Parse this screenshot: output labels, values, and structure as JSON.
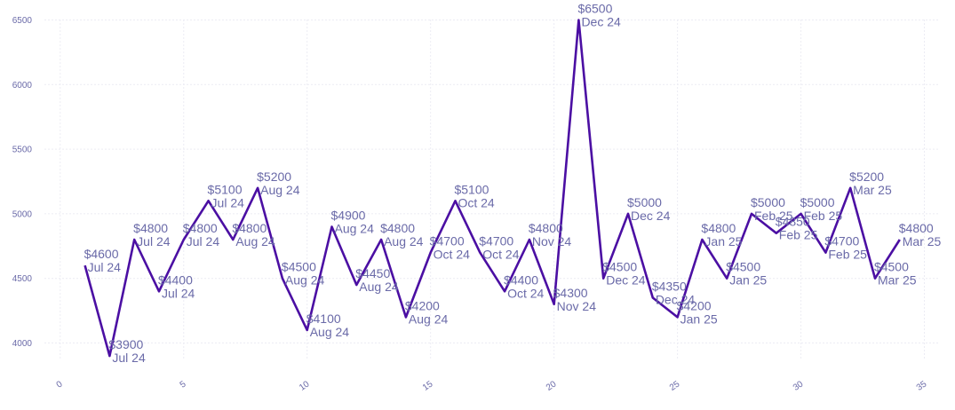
{
  "chart_data": {
    "type": "line",
    "title": "",
    "xlabel": "",
    "ylabel": "",
    "xlim": [
      -1,
      35.7
    ],
    "ylim": [
      3770,
      6620
    ],
    "x_ticks": [
      0,
      5,
      10,
      15,
      20,
      25,
      30,
      35
    ],
    "y_ticks": [
      4000,
      4500,
      5000,
      5500,
      6000,
      6500
    ],
    "grid": true,
    "line_color": "#4b0fa3",
    "text_color": "#6a6aa8",
    "series": [
      {
        "x": [
          1,
          2,
          3,
          4,
          5,
          6,
          7,
          8,
          9,
          10,
          11,
          12,
          13,
          14,
          15,
          16,
          17,
          18,
          19,
          20,
          21,
          22,
          23,
          24,
          25,
          26,
          27,
          28,
          29,
          30,
          31,
          32,
          33,
          34
        ],
        "values": [
          4600,
          3900,
          4800,
          4400,
          4800,
          5100,
          4800,
          5200,
          4500,
          4100,
          4900,
          4450,
          4800,
          4200,
          4700,
          5100,
          4700,
          4400,
          4800,
          4300,
          6500,
          4500,
          5000,
          4350,
          4200,
          4800,
          4500,
          5000,
          4850,
          5000,
          4700,
          5200,
          4500,
          4800
        ],
        "price_labels": [
          "$4600",
          "$3900",
          "$4800",
          "$4400",
          "$4800",
          "$5100",
          "$4800",
          "$5200",
          "$4500",
          "$4100",
          "$4900",
          "$4450",
          "$4800",
          "$4200",
          "$4700",
          "$5100",
          "$4700",
          "$4400",
          "$4800",
          "$4300",
          "$6500",
          "$4500",
          "$5000",
          "$4350",
          "$4200",
          "$4800",
          "$4500",
          "$5000",
          "$4850",
          "$5000",
          "$4700",
          "$5200",
          "$4500",
          "$4800"
        ],
        "date_labels": [
          "Jul 24",
          "Jul 24",
          "Jul 24",
          "Jul 24",
          "Jul 24",
          "Jul 24",
          "Aug 24",
          "Aug 24",
          "Aug 24",
          "Aug 24",
          "Aug 24",
          "Aug 24",
          "Aug 24",
          "Aug 24",
          "Oct 24",
          "Oct 24",
          "Oct 24",
          "Oct 24",
          "Nov 24",
          "Nov 24",
          "Dec 24",
          "Dec 24",
          "Dec 24",
          "Dec 24",
          "Jan 25",
          "Jan 25",
          "Jan 25",
          "Feb 25",
          "Feb 25",
          "Feb 25",
          "Feb 25",
          "Mar 25",
          "Mar 25",
          "Mar 25"
        ]
      }
    ]
  }
}
